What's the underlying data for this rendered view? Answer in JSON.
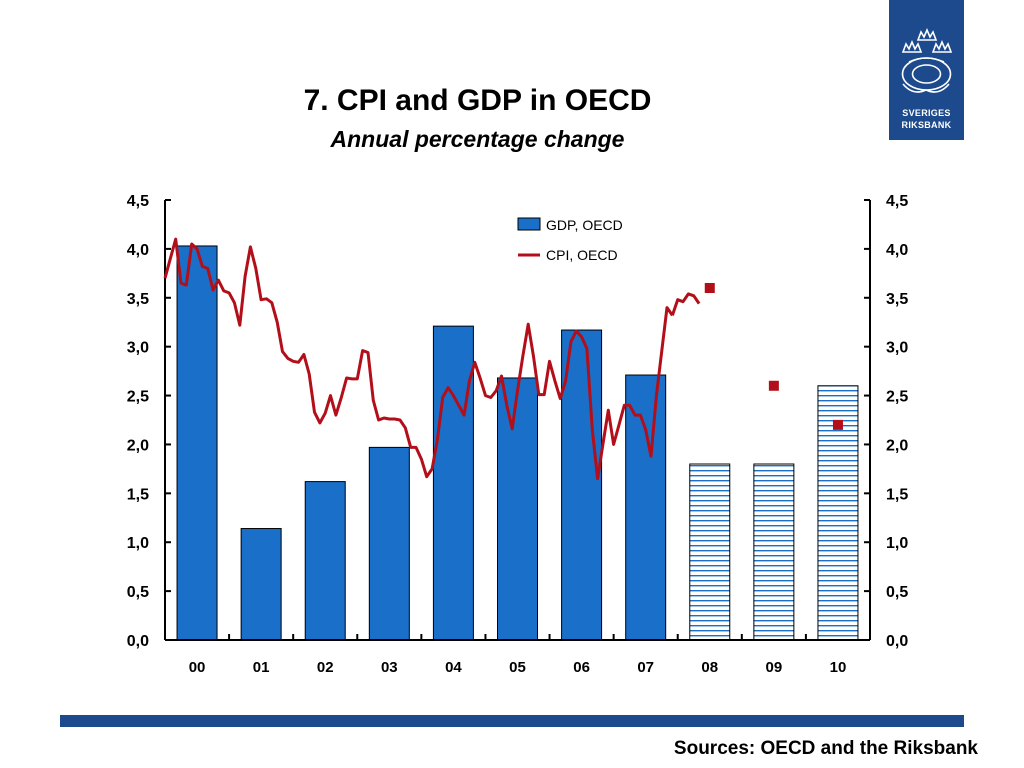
{
  "header": {
    "title": "7. CPI and GDP in OECD",
    "subtitle": "Annual percentage change"
  },
  "logo": {
    "line1": "SVERIGES",
    "line2": "RIKSBANK"
  },
  "footer": {
    "source": "Sources: OECD and the Riksbank"
  },
  "colors": {
    "gdp_bar": "#1a6fc9",
    "forecast_stripe": "#1a6fc9",
    "cpi_line": "#b30f1a",
    "brand": "#1d4a8c"
  },
  "chart_data": {
    "type": "bar",
    "categories": [
      "00",
      "01",
      "02",
      "03",
      "04",
      "05",
      "06",
      "07",
      "08",
      "09",
      "10"
    ],
    "ylim": [
      0,
      4.5
    ],
    "y_ticks": [
      "0,0",
      "0,5",
      "1,0",
      "1,5",
      "2,0",
      "2,5",
      "3,0",
      "3,5",
      "4,0",
      "4,5"
    ],
    "y_ticks_right": [
      "0,0",
      "0,5",
      "1,0",
      "1,5",
      "2,0",
      "2,5",
      "3,0",
      "3,5",
      "4,0",
      "4,5"
    ],
    "legend": {
      "placement": "top-center",
      "entries": [
        "GDP, OECD",
        "CPI, OECD"
      ]
    },
    "series": [
      {
        "name": "GDP, OECD",
        "type": "bar",
        "values": [
          4.03,
          1.14,
          1.62,
          1.97,
          3.21,
          2.68,
          3.17,
          2.71,
          1.8,
          1.8,
          2.6
        ],
        "forecast_from_index": 8
      },
      {
        "name": "CPI, OECD",
        "type": "line",
        "x": [
          0.0,
          0.083,
          0.167,
          0.25,
          0.333,
          0.417,
          0.5,
          0.583,
          0.667,
          0.75,
          0.833,
          0.917,
          1.0,
          1.083,
          1.167,
          1.25,
          1.333,
          1.417,
          1.5,
          1.583,
          1.667,
          1.75,
          1.833,
          1.917,
          2.0,
          2.083,
          2.167,
          2.25,
          2.333,
          2.417,
          2.5,
          2.583,
          2.667,
          2.75,
          2.833,
          2.917,
          3.0,
          3.083,
          3.167,
          3.25,
          3.333,
          3.417,
          3.5,
          3.583,
          3.667,
          3.75,
          3.833,
          3.917,
          4.0,
          4.083,
          4.167,
          4.25,
          4.333,
          4.417,
          4.5,
          4.583,
          4.667,
          4.75,
          4.833,
          4.917,
          5.0,
          5.083,
          5.167,
          5.25,
          5.333,
          5.417,
          5.5,
          5.583,
          5.667,
          5.75,
          5.833,
          5.917,
          6.0,
          6.083,
          6.167,
          6.25,
          6.333,
          6.417,
          6.5,
          6.583,
          6.667,
          6.75,
          6.833,
          6.917,
          7.0,
          7.083,
          7.167,
          7.25,
          7.333,
          7.417,
          7.5,
          7.583,
          7.667,
          7.75,
          7.833,
          7.917
        ],
        "values": [
          3.7,
          3.9,
          4.1,
          3.65,
          3.63,
          4.05,
          4.0,
          3.82,
          3.8,
          3.58,
          3.68,
          3.57,
          3.55,
          3.45,
          3.22,
          3.72,
          4.02,
          3.8,
          3.48,
          3.49,
          3.45,
          3.25,
          2.95,
          2.88,
          2.85,
          2.84,
          2.92,
          2.72,
          2.33,
          2.22,
          2.32,
          2.5,
          2.3,
          2.48,
          2.68,
          2.67,
          2.67,
          2.96,
          2.94,
          2.45,
          2.25,
          2.27,
          2.26,
          2.26,
          2.25,
          2.17,
          1.97,
          1.97,
          1.85,
          1.67,
          1.75,
          2.05,
          2.48,
          2.58,
          2.5,
          2.4,
          2.3,
          2.65,
          2.84,
          2.68,
          2.5,
          2.48,
          2.55,
          2.7,
          2.4,
          2.16,
          2.55,
          2.9,
          3.23,
          2.9,
          2.51,
          2.51,
          2.85,
          2.65,
          2.47,
          2.65,
          3.05,
          3.16,
          3.1,
          2.98,
          2.15,
          1.65,
          2.0,
          2.35,
          2.0,
          2.2,
          2.4,
          2.4,
          2.3,
          2.3,
          2.15,
          1.88,
          2.5,
          2.95,
          3.4,
          3.32
        ],
        "tail_x": [
          8.0,
          8.083,
          8.167,
          8.25,
          8.333
        ],
        "tail_values": [
          3.48,
          3.46,
          3.54,
          3.52,
          3.44
        ]
      },
      {
        "name": "CPI forecast",
        "type": "scatter",
        "x": [
          8.5,
          9.5,
          10.5
        ],
        "values": [
          3.6,
          2.6,
          2.2
        ]
      }
    ]
  }
}
